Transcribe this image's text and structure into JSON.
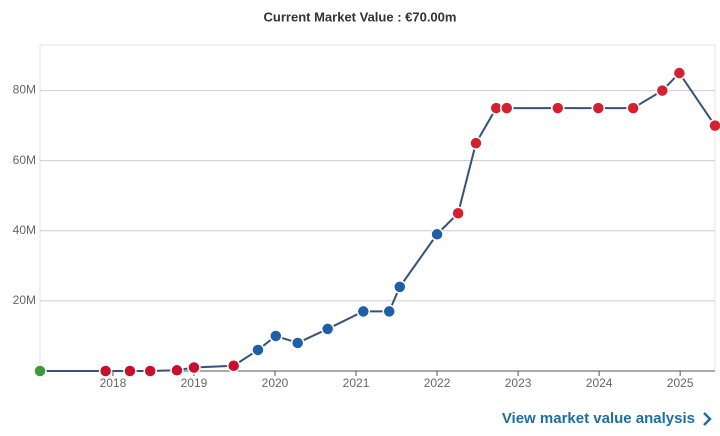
{
  "chart_data": {
    "type": "line",
    "title": "Current Market Value : €70.00m",
    "x": [
      2017.1,
      2017.91,
      2018.21,
      2018.46,
      2018.79,
      2019.0,
      2019.49,
      2019.79,
      2020.01,
      2020.28,
      2020.65,
      2021.09,
      2021.41,
      2021.54,
      2022.0,
      2022.26,
      2022.48,
      2022.73,
      2022.86,
      2023.49,
      2023.99,
      2024.42,
      2024.78,
      2024.99,
      2025.43
    ],
    "series": [
      {
        "color": "#34527a",
        "values": [
          0,
          0,
          0,
          0,
          0.2,
          1,
          1.5,
          6,
          10,
          8,
          12,
          17,
          17,
          24,
          39,
          45,
          65,
          75,
          75,
          75,
          75,
          75,
          80,
          85,
          70
        ],
        "point_colors": [
          "#3a9b3a",
          "#c8102e",
          "#c8102e",
          "#c8102e",
          "#c8102e",
          "#c8102e",
          "#c8102e",
          "#1f5fa8",
          "#1f5fa8",
          "#1f5fa8",
          "#1f5fa8",
          "#1f5fa8",
          "#1f5fa8",
          "#1f5fa8",
          "#1f5fa8",
          "#d5202e",
          "#d5202e",
          "#d5202e",
          "#d5202e",
          "#d5202e",
          "#d5202e",
          "#d5202e",
          "#d5202e",
          "#d5202e",
          "#d5202e"
        ]
      }
    ],
    "xlim": [
      2017.1,
      2025.43
    ],
    "xticks": [
      2018,
      2019,
      2020,
      2021,
      2022,
      2023,
      2024,
      2025
    ],
    "ylim": [
      0,
      93
    ],
    "yticks": [
      {
        "value": 20,
        "label": "20M"
      },
      {
        "value": 40,
        "label": "40M"
      },
      {
        "value": 60,
        "label": "60M"
      },
      {
        "value": 80,
        "label": "80M"
      }
    ],
    "grid": true,
    "link": "View market value analysis"
  }
}
